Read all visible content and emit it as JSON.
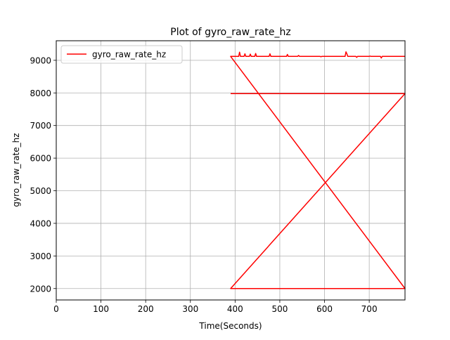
{
  "chart_data": {
    "type": "line",
    "title": "Plot of gyro_raw_rate_hz",
    "xlabel": "Time(Seconds)",
    "ylabel": "gyro_raw_rate_hz",
    "xlim": [
      0,
      780
    ],
    "ylim": [
      1650,
      9600
    ],
    "x_ticks": [
      0,
      100,
      200,
      300,
      400,
      500,
      600,
      700
    ],
    "y_ticks": [
      2000,
      3000,
      4000,
      5000,
      6000,
      7000,
      8000,
      9000
    ],
    "grid": true,
    "legend": {
      "placement": "top-left"
    },
    "series": [
      {
        "name": "gyro_raw_rate_hz",
        "color": "#ff0000",
        "x": [
          390,
          780,
          390,
          780,
          390,
          408,
          410,
          412,
          420,
          422,
          424,
          432,
          434,
          436,
          444,
          446,
          448,
          470,
          476,
          478,
          480,
          515,
          517,
          519,
          540,
          542,
          544,
          590,
          592,
          594,
          646,
          648,
          650,
          652,
          670,
          672,
          674,
          700,
          702,
          704,
          725,
          727,
          729,
          780
        ],
        "y": [
          7980,
          7980,
          2000,
          2000,
          9120,
          9120,
          9250,
          9120,
          9120,
          9200,
          9120,
          9120,
          9190,
          9120,
          9120,
          9210,
          9120,
          9120,
          9120,
          9200,
          9120,
          9120,
          9180,
          9120,
          9120,
          9150,
          9120,
          9120,
          9110,
          9120,
          9120,
          9260,
          9200,
          9120,
          9120,
          9090,
          9120,
          9120,
          9130,
          9120,
          9120,
          9070,
          9120,
          9120
        ]
      }
    ]
  }
}
